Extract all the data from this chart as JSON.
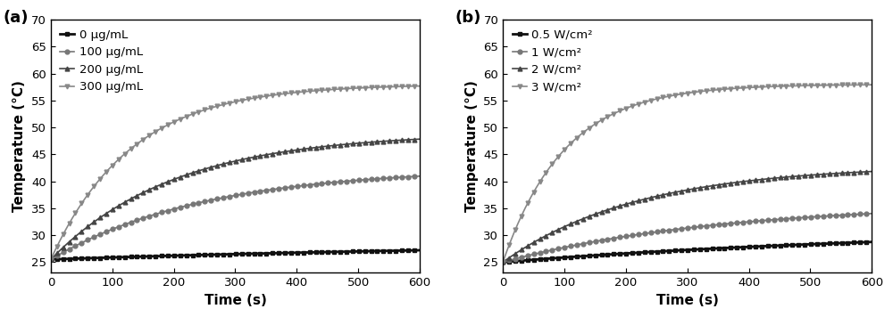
{
  "panel_a": {
    "label": "(a)",
    "xlabel": "Time (s)",
    "ylabel": "Temperature (°C)",
    "xlim": [
      0,
      600
    ],
    "ylim": [
      23,
      70
    ],
    "yticks": [
      25,
      30,
      35,
      40,
      45,
      50,
      55,
      60,
      65,
      70
    ],
    "xticks": [
      0,
      100,
      200,
      300,
      400,
      500,
      600
    ],
    "series": [
      {
        "label": "0 μg/mL",
        "T0": 25.5,
        "T_end": 29.0,
        "tau": 900,
        "color": "#111111",
        "marker": "s",
        "marker_color": "#111111",
        "linewidth": 2.0,
        "markersize": 3.5,
        "markevery": 10
      },
      {
        "label": "100 μg/mL",
        "T0": 25.5,
        "T_end": 42.5,
        "tau": 250,
        "color": "#777777",
        "marker": "o",
        "marker_color": "#777777",
        "linewidth": 1.2,
        "markersize": 3.5,
        "markevery": 10
      },
      {
        "label": "200 μg/mL",
        "T0": 25.5,
        "T_end": 49.0,
        "tau": 200,
        "color": "#444444",
        "marker": "^",
        "marker_color": "#444444",
        "linewidth": 1.2,
        "markersize": 3.5,
        "markevery": 10
      },
      {
        "label": "300 μg/mL",
        "T0": 25.5,
        "T_end": 58.0,
        "tau": 130,
        "color": "#888888",
        "marker": "v",
        "marker_color": "#888888",
        "linewidth": 1.2,
        "markersize": 3.5,
        "markevery": 10
      }
    ]
  },
  "panel_b": {
    "label": "(b)",
    "xlabel": "Time (s)",
    "ylabel": "Temperature (°C)",
    "xlim": [
      0,
      600
    ],
    "ylim": [
      23,
      70
    ],
    "yticks": [
      25,
      30,
      35,
      40,
      45,
      50,
      55,
      60,
      65,
      70
    ],
    "xticks": [
      0,
      100,
      200,
      300,
      400,
      500,
      600
    ],
    "series": [
      {
        "label": "0.5 W/cm²",
        "T0": 25.0,
        "T_end": 31.5,
        "tau": 700,
        "color": "#111111",
        "marker": "s",
        "marker_color": "#111111",
        "linewidth": 2.0,
        "markersize": 3.5,
        "markevery": 10
      },
      {
        "label": "1 W/cm²",
        "T0": 25.0,
        "T_end": 36.0,
        "tau": 350,
        "color": "#777777",
        "marker": "o",
        "marker_color": "#777777",
        "linewidth": 1.2,
        "markersize": 3.5,
        "markevery": 10
      },
      {
        "label": "2 W/cm²",
        "T0": 25.0,
        "T_end": 43.0,
        "tau": 220,
        "color": "#444444",
        "marker": "^",
        "marker_color": "#444444",
        "linewidth": 1.2,
        "markersize": 3.5,
        "markevery": 10
      },
      {
        "label": "3 W/cm²",
        "T0": 25.0,
        "T_end": 58.0,
        "tau": 100,
        "color": "#888888",
        "marker": "v",
        "marker_color": "#888888",
        "linewidth": 1.2,
        "markersize": 3.5,
        "markevery": 10
      }
    ]
  },
  "figure_bg": "#ffffff",
  "legend_fontsize": 9.5,
  "axis_label_fontsize": 11,
  "tick_fontsize": 9.5,
  "panel_label_fontsize": 13
}
